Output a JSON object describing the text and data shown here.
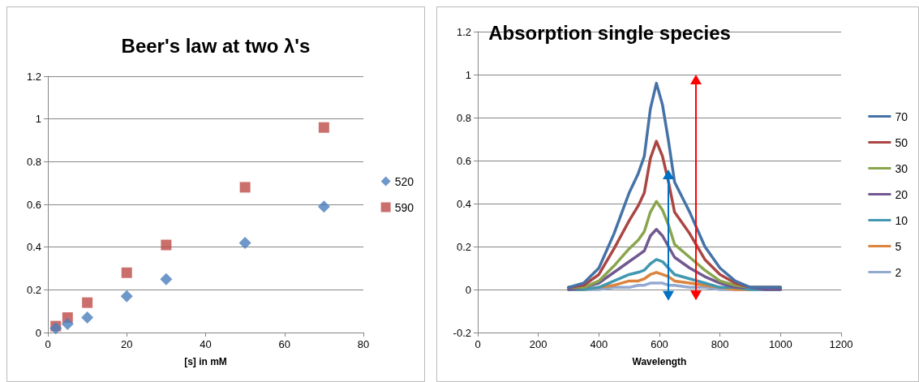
{
  "chart_data": [
    {
      "type": "scatter",
      "title": "Beer's law at two λ's",
      "xlabel": "[s] in mM",
      "xlim": [
        0,
        80
      ],
      "xticks": [
        0,
        20,
        40,
        60,
        80
      ],
      "ylim": [
        0,
        1.2
      ],
      "yticks": [
        0,
        0.2,
        0.4,
        0.6,
        0.8,
        1,
        1.2
      ],
      "grid": "y",
      "legend": "right",
      "series": [
        {
          "name": "520",
          "color": "#4a7ebb",
          "marker": "diamond",
          "x": [
            2,
            5,
            10,
            20,
            30,
            50,
            70
          ],
          "values": [
            0.02,
            0.04,
            0.07,
            0.17,
            0.25,
            0.42,
            0.59
          ]
        },
        {
          "name": "590",
          "color": "#be4b48",
          "marker": "square",
          "x": [
            2,
            5,
            10,
            20,
            30,
            50,
            70
          ],
          "values": [
            0.03,
            0.07,
            0.14,
            0.28,
            0.41,
            0.68,
            0.96
          ]
        }
      ]
    },
    {
      "type": "line",
      "title": "Absorption single species",
      "xlabel": "Wavelength",
      "xlim": [
        0,
        1200
      ],
      "xticks": [
        0,
        200,
        400,
        600,
        800,
        1000,
        1200
      ],
      "ylim": [
        -0.2,
        1.2
      ],
      "yticks": [
        -0.2,
        0,
        0.2,
        0.4,
        0.6,
        0.8,
        1,
        1.2
      ],
      "grid": "y",
      "legend": "right",
      "marker": "none",
      "line_style": "solid",
      "x": [
        300,
        350,
        400,
        450,
        500,
        530,
        550,
        570,
        590,
        610,
        630,
        650,
        700,
        750,
        800,
        850,
        900,
        950,
        1000
      ],
      "series": [
        {
          "name": "70",
          "color": "#4572a7",
          "values": [
            0.01,
            0.03,
            0.1,
            0.26,
            0.45,
            0.54,
            0.62,
            0.84,
            0.96,
            0.86,
            0.69,
            0.5,
            0.36,
            0.2,
            0.1,
            0.04,
            0.01,
            0.01,
            0.01
          ]
        },
        {
          "name": "50",
          "color": "#aa4643",
          "values": [
            0.01,
            0.02,
            0.07,
            0.19,
            0.32,
            0.39,
            0.45,
            0.61,
            0.69,
            0.62,
            0.5,
            0.36,
            0.26,
            0.14,
            0.07,
            0.03,
            0.01,
            0.01,
            0.01
          ]
        },
        {
          "name": "30",
          "color": "#89a54e",
          "values": [
            0.01,
            0.01,
            0.04,
            0.11,
            0.19,
            0.23,
            0.27,
            0.36,
            0.41,
            0.37,
            0.3,
            0.21,
            0.15,
            0.09,
            0.04,
            0.02,
            0.01,
            0.01,
            0.01
          ]
        },
        {
          "name": "20",
          "color": "#71588f",
          "values": [
            0,
            0.01,
            0.03,
            0.08,
            0.13,
            0.16,
            0.18,
            0.25,
            0.28,
            0.25,
            0.2,
            0.15,
            0.1,
            0.06,
            0.03,
            0.01,
            0.01,
            0,
            0
          ]
        },
        {
          "name": "10",
          "color": "#4198af",
          "values": [
            0,
            0,
            0.01,
            0.04,
            0.07,
            0.08,
            0.09,
            0.12,
            0.14,
            0.13,
            0.1,
            0.07,
            0.05,
            0.03,
            0.01,
            0.01,
            0,
            0,
            0
          ]
        },
        {
          "name": "5",
          "color": "#db843d",
          "values": [
            0,
            0,
            0.01,
            0.02,
            0.04,
            0.04,
            0.05,
            0.07,
            0.08,
            0.07,
            0.06,
            0.04,
            0.03,
            0.02,
            0.01,
            0,
            0,
            null,
            null
          ]
        },
        {
          "name": "2",
          "color": "#93a9cf",
          "values": [
            0,
            0,
            0,
            0.01,
            0.01,
            0.02,
            0.02,
            0.03,
            0.03,
            0.03,
            0.02,
            0.02,
            0.01,
            0.01,
            0,
            0,
            0,
            0,
            0
          ]
        }
      ]
    }
  ]
}
